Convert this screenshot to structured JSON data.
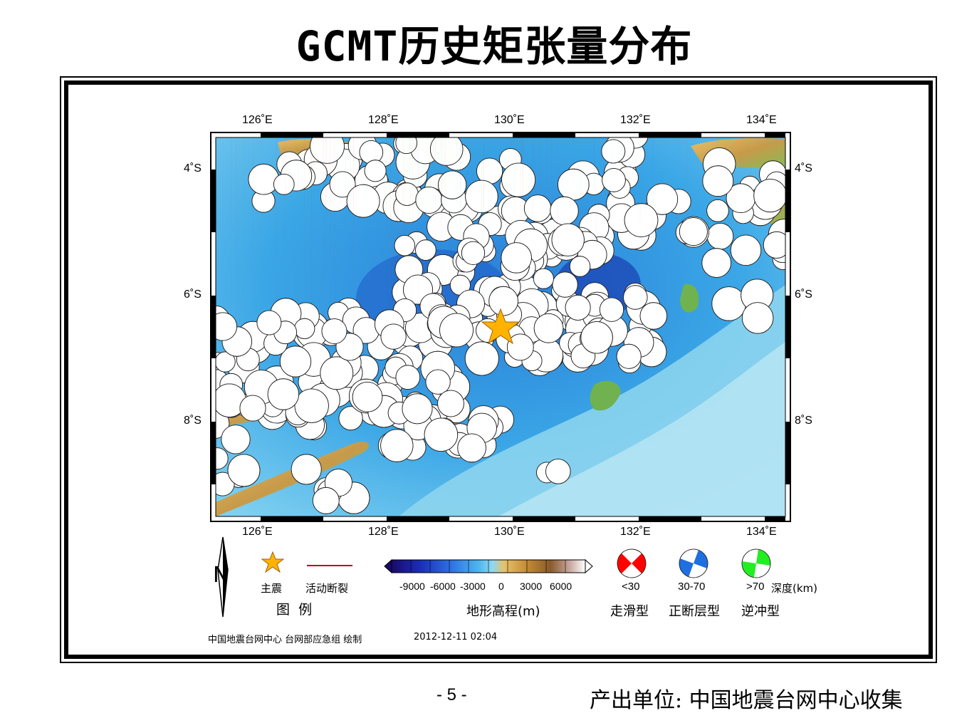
{
  "title": "GCMT历史矩张量分布",
  "map": {
    "lon_ticks": [
      "126˚E",
      "128˚E",
      "130˚E",
      "132˚E",
      "134˚E"
    ],
    "lat_ticks": [
      "4˚S",
      "6˚S",
      "8˚S"
    ],
    "extent": {
      "lon": [
        125.4,
        134.5
      ],
      "lat": [
        -3.5,
        -9.6
      ]
    },
    "main_shock": {
      "lon": 129.8,
      "lat": -6.5
    },
    "colors": {
      "strike_slip": "#ff0000",
      "normal": "#1e6fe0",
      "thrust": "#22ee22",
      "main_shock": "#ffb300",
      "fault": "#c00000"
    }
  },
  "legend": {
    "north_label": "N",
    "main_shock_label": "主震",
    "fault_label": "活动断裂",
    "legend_title": "图  例",
    "elevation_ticks": [
      "-9000",
      "-6000",
      "-3000",
      "0",
      "3000",
      "6000"
    ],
    "elevation_title": "地形高程(m)",
    "depth_classes": [
      "<30",
      "30-70",
      ">70"
    ],
    "depth_unit": "深度(km)",
    "mechanism_types": [
      "走滑型",
      "正断层型",
      "逆冲型"
    ]
  },
  "footer": {
    "credit": "中国地震台网中心 台网部应急组 绘制",
    "timestamp": "2012-12-11 02:04",
    "page_number": "- 5 -",
    "producer": "产出单位: 中国地震台网中心收集"
  }
}
